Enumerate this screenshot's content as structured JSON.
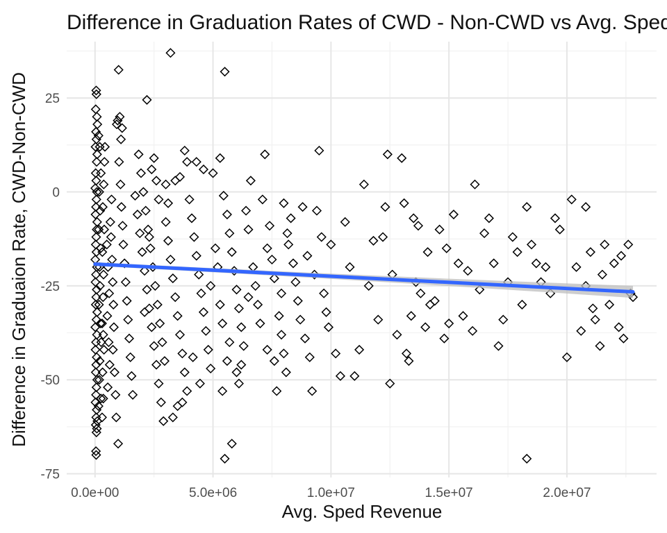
{
  "chart_data": {
    "type": "scatter",
    "title": "Difference in Graduation Rates of CWD - Non-CWD vs Avg. Sped Revenue",
    "xlabel": "Avg. Sped Revenue",
    "ylabel": "Difference in Graduaion Rate, CWD-Non-CWD",
    "xlim": [
      -1200000,
      23800000
    ],
    "ylim": [
      -76,
      40
    ],
    "x_ticks": [
      0,
      5000000,
      10000000,
      15000000,
      20000000
    ],
    "x_tick_labels": [
      "0.0e+00",
      "5.0e+06",
      "1.0e+07",
      "1.5e+07",
      "2.0e+07"
    ],
    "y_ticks": [
      -75,
      -50,
      -25,
      0,
      25
    ],
    "y_tick_labels": [
      "-75",
      "-50",
      "-25",
      "0",
      "25"
    ],
    "grid": true,
    "marker": "open-diamond",
    "trend_line": {
      "method": "linear",
      "x": [
        0,
        22800000
      ],
      "y": [
        -19.2,
        -26.6
      ],
      "ci_half_width": [
        0.5,
        1.6
      ],
      "color": "#3366FF",
      "ci_color": "#bdbdbd"
    },
    "points": [
      [
        50000,
        27
      ],
      [
        60000,
        26
      ],
      [
        30000,
        22
      ],
      [
        80000,
        20
      ],
      [
        100000,
        18
      ],
      [
        40000,
        16
      ],
      [
        60000,
        14
      ],
      [
        20000,
        12
      ],
      [
        90000,
        10
      ],
      [
        70000,
        8
      ],
      [
        30000,
        5
      ],
      [
        50000,
        3
      ],
      [
        10000,
        1
      ],
      [
        80000,
        0
      ],
      [
        60000,
        -2
      ],
      [
        40000,
        -4
      ],
      [
        20000,
        -6
      ],
      [
        90000,
        -8
      ],
      [
        70000,
        -10
      ],
      [
        50000,
        -12
      ],
      [
        30000,
        -14
      ],
      [
        60000,
        -16
      ],
      [
        10000,
        -18
      ],
      [
        80000,
        -20
      ],
      [
        40000,
        -22
      ],
      [
        20000,
        -24
      ],
      [
        70000,
        -26
      ],
      [
        50000,
        -28
      ],
      [
        30000,
        -30
      ],
      [
        90000,
        -32
      ],
      [
        60000,
        -34
      ],
      [
        10000,
        -36
      ],
      [
        80000,
        -38
      ],
      [
        40000,
        -40
      ],
      [
        20000,
        -42
      ],
      [
        70000,
        -44
      ],
      [
        50000,
        -46
      ],
      [
        30000,
        -48
      ],
      [
        90000,
        -50
      ],
      [
        60000,
        -52
      ],
      [
        40000,
        -54
      ],
      [
        20000,
        -56
      ],
      [
        70000,
        -58
      ],
      [
        50000,
        -60
      ],
      [
        30000,
        -62
      ],
      [
        60000,
        -64
      ],
      [
        40000,
        -69
      ],
      [
        50000,
        -70
      ],
      [
        80000,
        -63
      ],
      [
        100000,
        -61
      ],
      [
        150000,
        15
      ],
      [
        200000,
        12
      ],
      [
        250000,
        5
      ],
      [
        180000,
        0
      ],
      [
        220000,
        -5
      ],
      [
        160000,
        -10
      ],
      [
        240000,
        -15
      ],
      [
        190000,
        -20
      ],
      [
        210000,
        -25
      ],
      [
        170000,
        -30
      ],
      [
        230000,
        -35
      ],
      [
        260000,
        -40
      ],
      [
        200000,
        -45
      ],
      [
        180000,
        -50
      ],
      [
        250000,
        -55
      ],
      [
        150000,
        -57
      ],
      [
        300000,
        -60
      ],
      [
        350000,
        -55
      ],
      [
        320000,
        -48
      ],
      [
        380000,
        -42
      ],
      [
        300000,
        -35
      ],
      [
        340000,
        -28
      ],
      [
        360000,
        -22
      ],
      [
        310000,
        -16
      ],
      [
        390000,
        -10
      ],
      [
        330000,
        -4
      ],
      [
        370000,
        2
      ],
      [
        400000,
        8
      ],
      [
        420000,
        12
      ],
      [
        350000,
        -38
      ],
      [
        500000,
        -14
      ],
      [
        550000,
        -20
      ],
      [
        600000,
        -27
      ],
      [
        520000,
        -33
      ],
      [
        580000,
        -40
      ],
      [
        620000,
        -46
      ],
      [
        540000,
        -52
      ],
      [
        650000,
        -8
      ],
      [
        700000,
        -2
      ],
      [
        680000,
        -12
      ],
      [
        720000,
        -18
      ],
      [
        750000,
        -24
      ],
      [
        780000,
        -30
      ],
      [
        800000,
        -36
      ],
      [
        760000,
        -42
      ],
      [
        830000,
        -48
      ],
      [
        870000,
        -54
      ],
      [
        900000,
        -60
      ],
      [
        920000,
        18
      ],
      [
        960000,
        19
      ],
      [
        1000000,
        32.5
      ],
      [
        1050000,
        20
      ],
      [
        1100000,
        14
      ],
      [
        1150000,
        17
      ],
      [
        1020000,
        8
      ],
      [
        1080000,
        2
      ],
      [
        1120000,
        -4
      ],
      [
        1170000,
        -9
      ],
      [
        1200000,
        -14
      ],
      [
        1250000,
        -19
      ],
      [
        1300000,
        -24
      ],
      [
        1350000,
        -29
      ],
      [
        1400000,
        -34
      ],
      [
        1450000,
        -39
      ],
      [
        1500000,
        -44
      ],
      [
        1550000,
        -49
      ],
      [
        1600000,
        -54
      ],
      [
        980000,
        -67
      ],
      [
        1700000,
        -1
      ],
      [
        1800000,
        -6
      ],
      [
        1900000,
        -11
      ],
      [
        2000000,
        -16
      ],
      [
        2100000,
        -21
      ],
      [
        2200000,
        -26
      ],
      [
        2300000,
        -31
      ],
      [
        2400000,
        -36
      ],
      [
        2500000,
        -41
      ],
      [
        2600000,
        -46
      ],
      [
        2700000,
        -51
      ],
      [
        2800000,
        -56
      ],
      [
        2900000,
        -61
      ],
      [
        2200000,
        24.5
      ],
      [
        1850000,
        10
      ],
      [
        1950000,
        5
      ],
      [
        2050000,
        0
      ],
      [
        2150000,
        -5
      ],
      [
        2250000,
        -10
      ],
      [
        2350000,
        -15
      ],
      [
        2450000,
        -20
      ],
      [
        2550000,
        -25
      ],
      [
        2650000,
        -30
      ],
      [
        2750000,
        -35
      ],
      [
        2850000,
        -40
      ],
      [
        2950000,
        -45
      ],
      [
        2500000,
        9
      ],
      [
        2400000,
        6
      ],
      [
        2600000,
        3
      ],
      [
        2700000,
        -2
      ],
      [
        2300000,
        -12
      ],
      [
        2100000,
        -32
      ],
      [
        3000000,
        -8
      ],
      [
        3100000,
        -13
      ],
      [
        3200000,
        -18
      ],
      [
        3300000,
        -23
      ],
      [
        3400000,
        -28
      ],
      [
        3500000,
        -33
      ],
      [
        3600000,
        -38
      ],
      [
        3700000,
        -43
      ],
      [
        3800000,
        -48
      ],
      [
        3900000,
        -53
      ],
      [
        3200000,
        37
      ],
      [
        3000000,
        2
      ],
      [
        3100000,
        -3
      ],
      [
        3400000,
        3
      ],
      [
        3600000,
        4
      ],
      [
        3800000,
        11
      ],
      [
        3900000,
        8
      ],
      [
        3500000,
        -57
      ],
      [
        3300000,
        -60
      ],
      [
        3700000,
        -56
      ],
      [
        4000000,
        -2
      ],
      [
        4100000,
        -7
      ],
      [
        4200000,
        -12
      ],
      [
        4300000,
        -17
      ],
      [
        4400000,
        -22
      ],
      [
        4500000,
        -27
      ],
      [
        4600000,
        -32
      ],
      [
        4700000,
        -37
      ],
      [
        4800000,
        -42
      ],
      [
        4900000,
        -47
      ],
      [
        5000000,
        5
      ],
      [
        4300000,
        8
      ],
      [
        4450000,
        -51
      ],
      [
        4150000,
        -44
      ],
      [
        4600000,
        6
      ],
      [
        4900000,
        -25
      ],
      [
        5100000,
        -15
      ],
      [
        5200000,
        -20
      ],
      [
        5300000,
        -30
      ],
      [
        5400000,
        -35
      ],
      [
        5500000,
        32
      ],
      [
        5300000,
        9
      ],
      [
        5450000,
        -1
      ],
      [
        5600000,
        -6
      ],
      [
        5700000,
        -11
      ],
      [
        5800000,
        -16
      ],
      [
        5900000,
        -21
      ],
      [
        6000000,
        -26
      ],
      [
        6100000,
        -31
      ],
      [
        6200000,
        -36
      ],
      [
        5500000,
        -71
      ],
      [
        5400000,
        -53
      ],
      [
        5600000,
        -45
      ],
      [
        5700000,
        -40
      ],
      [
        5800000,
        -67
      ],
      [
        6300000,
        -41
      ],
      [
        6400000,
        -5
      ],
      [
        6500000,
        -10
      ],
      [
        6600000,
        3
      ],
      [
        6700000,
        -20
      ],
      [
        6000000,
        -48
      ],
      [
        6100000,
        -51
      ],
      [
        6200000,
        -46
      ],
      [
        6500000,
        -28
      ],
      [
        6800000,
        -25
      ],
      [
        6900000,
        -30
      ],
      [
        7000000,
        -35
      ],
      [
        7100000,
        -2
      ],
      [
        7200000,
        10
      ],
      [
        7300000,
        -15
      ],
      [
        7400000,
        -9
      ],
      [
        7500000,
        -18
      ],
      [
        7600000,
        -23
      ],
      [
        7700000,
        -53
      ],
      [
        7800000,
        -33
      ],
      [
        7900000,
        -38
      ],
      [
        8000000,
        -43
      ],
      [
        8100000,
        -48
      ],
      [
        8200000,
        -14
      ],
      [
        8300000,
        -7
      ],
      [
        7300000,
        -42
      ],
      [
        7600000,
        -45
      ],
      [
        7900000,
        -27
      ],
      [
        8000000,
        -3
      ],
      [
        8150000,
        -11
      ],
      [
        8400000,
        -19
      ],
      [
        8500000,
        -24
      ],
      [
        8600000,
        -29
      ],
      [
        8700000,
        -34
      ],
      [
        8800000,
        -4
      ],
      [
        8900000,
        -39
      ],
      [
        9000000,
        -17
      ],
      [
        9100000,
        -44
      ],
      [
        9200000,
        -53
      ],
      [
        9300000,
        -22
      ],
      [
        9400000,
        -5
      ],
      [
        9500000,
        11
      ],
      [
        9600000,
        -12
      ],
      [
        9700000,
        -27
      ],
      [
        9800000,
        -32
      ],
      [
        9900000,
        -36
      ],
      [
        10000000,
        -14
      ],
      [
        10200000,
        -43
      ],
      [
        10400000,
        -49
      ],
      [
        10600000,
        -8
      ],
      [
        10800000,
        -20
      ],
      [
        11000000,
        -49
      ],
      [
        11200000,
        -42
      ],
      [
        11400000,
        2
      ],
      [
        11600000,
        -25
      ],
      [
        11800000,
        -13
      ],
      [
        12000000,
        -34
      ],
      [
        12200000,
        -12
      ],
      [
        12300000,
        -4
      ],
      [
        12400000,
        10
      ],
      [
        12500000,
        -51
      ],
      [
        12600000,
        -22
      ],
      [
        12800000,
        -38
      ],
      [
        13000000,
        9
      ],
      [
        13100000,
        -3
      ],
      [
        13200000,
        -43
      ],
      [
        13300000,
        -45
      ],
      [
        13400000,
        -33
      ],
      [
        13500000,
        -7
      ],
      [
        13600000,
        -24
      ],
      [
        13700000,
        -9
      ],
      [
        13800000,
        -27
      ],
      [
        14000000,
        -36
      ],
      [
        14100000,
        -16
      ],
      [
        14200000,
        -30
      ],
      [
        14400000,
        -29
      ],
      [
        14600000,
        -10
      ],
      [
        14800000,
        -39
      ],
      [
        14900000,
        -15
      ],
      [
        15000000,
        -35
      ],
      [
        15200000,
        -6
      ],
      [
        15400000,
        -19
      ],
      [
        15600000,
        -33
      ],
      [
        15800000,
        -21
      ],
      [
        16000000,
        -37
      ],
      [
        16100000,
        2
      ],
      [
        16300000,
        -26
      ],
      [
        16500000,
        -11
      ],
      [
        16700000,
        -7
      ],
      [
        16900000,
        -19
      ],
      [
        17100000,
        -41
      ],
      [
        17300000,
        -34
      ],
      [
        17500000,
        -24
      ],
      [
        17700000,
        -12
      ],
      [
        17900000,
        -16
      ],
      [
        18100000,
        -30
      ],
      [
        18300000,
        -71
      ],
      [
        18300000,
        -4
      ],
      [
        18500000,
        -14
      ],
      [
        18700000,
        -19
      ],
      [
        18900000,
        -24
      ],
      [
        19100000,
        -20
      ],
      [
        19300000,
        -27
      ],
      [
        19500000,
        -7
      ],
      [
        19700000,
        -10
      ],
      [
        20000000,
        -44
      ],
      [
        20200000,
        -2
      ],
      [
        20400000,
        -20
      ],
      [
        20600000,
        -37
      ],
      [
        20800000,
        -4
      ],
      [
        21000000,
        -16
      ],
      [
        21200000,
        -34
      ],
      [
        21400000,
        -41
      ],
      [
        21600000,
        -14
      ],
      [
        21800000,
        -30
      ],
      [
        22000000,
        -19
      ],
      [
        22200000,
        -36
      ],
      [
        22400000,
        -39
      ],
      [
        22600000,
        -14
      ],
      [
        22800000,
        -28
      ],
      [
        22700000,
        -27
      ],
      [
        21500000,
        -22
      ],
      [
        20800000,
        -25
      ],
      [
        21100000,
        -31
      ],
      [
        22300000,
        -17
      ]
    ],
    "colors": {
      "points_stroke": "#000000",
      "grid_major": "#e6e6e6",
      "grid_minor": "#f1f1f1",
      "tick_text": "#4d4d4d"
    }
  }
}
